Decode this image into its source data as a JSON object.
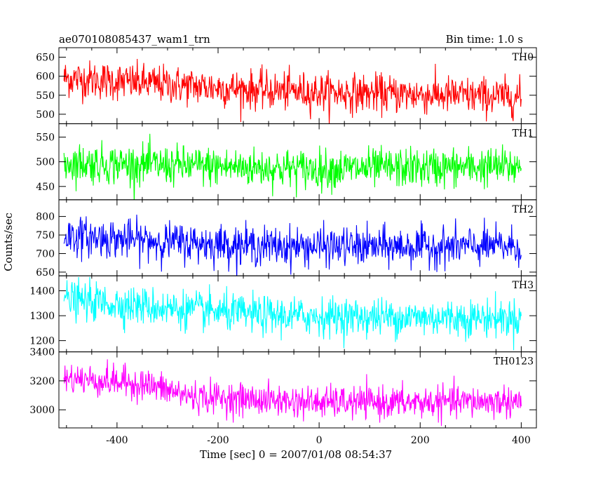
{
  "chart_data": {
    "type": "line",
    "title_left": "ae070108085437_wam1_trn",
    "title_right": "Bin time: 1.0 s",
    "xlabel": "Time [sec] 0 = 2007/01/08 08:54:37",
    "ylabel": "Counts/sec",
    "xlim": [
      -515,
      430
    ],
    "x_ticks": [
      -400,
      -200,
      0,
      200,
      400
    ],
    "x_range_data": [
      -505,
      400
    ],
    "grid": false,
    "panels": [
      {
        "name": "TH0",
        "color": "#ff0000",
        "ylim": [
          475,
          675
        ],
        "y_ticks": [
          500,
          550,
          600,
          650
        ],
        "trend": [
          [
            -505,
            595
          ],
          [
            -300,
            578
          ],
          [
            -100,
            562
          ],
          [
            100,
            555
          ],
          [
            400,
            545
          ]
        ],
        "noise_sd": 25
      },
      {
        "name": "TH1",
        "color": "#00ff00",
        "ylim": [
          423,
          577
        ],
        "y_ticks": [
          450,
          500,
          550
        ],
        "trend": [
          [
            -505,
            498
          ],
          [
            -200,
            490
          ],
          [
            0,
            485
          ],
          [
            200,
            488
          ],
          [
            400,
            490
          ]
        ],
        "noise_sd": 20
      },
      {
        "name": "TH2",
        "color": "#0000ff",
        "ylim": [
          640,
          845
        ],
        "y_ticks": [
          650,
          700,
          750,
          800
        ],
        "trend": [
          [
            -505,
            748
          ],
          [
            -300,
            732
          ],
          [
            -100,
            720
          ],
          [
            100,
            718
          ],
          [
            400,
            720
          ]
        ],
        "noise_sd": 26
      },
      {
        "name": "TH3",
        "color": "#00ffff",
        "ylim": [
          1155,
          1460
        ],
        "y_ticks": [
          1200,
          1300,
          1400
        ],
        "trend": [
          [
            -505,
            1365
          ],
          [
            -300,
            1330
          ],
          [
            -100,
            1300
          ],
          [
            100,
            1295
          ],
          [
            400,
            1290
          ]
        ],
        "noise_sd": 38
      },
      {
        "name": "TH0123",
        "color": "#ff00ff",
        "ylim": [
          2875,
          3400
        ],
        "y_ticks": [
          3000,
          3200,
          3400
        ],
        "trend": [
          [
            -505,
            3220
          ],
          [
            -350,
            3180
          ],
          [
            -250,
            3090
          ],
          [
            0,
            3050
          ],
          [
            200,
            3050
          ],
          [
            400,
            3060
          ]
        ],
        "noise_sd": 55
      }
    ]
  }
}
